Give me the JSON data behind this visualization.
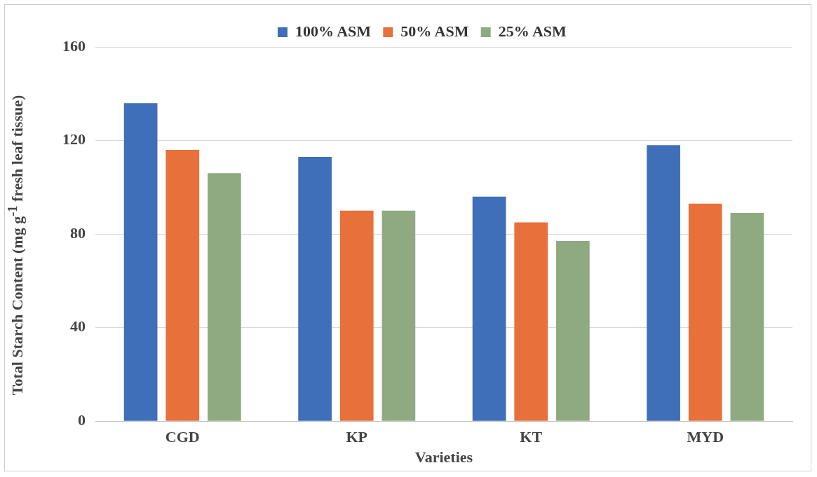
{
  "chart_data": {
    "type": "bar",
    "xlabel": "Varieties",
    "ylabel": "Total Starch Content (mg g$^{-1}$ fresh leaf tissue)",
    "categories": [
      "CGD",
      "KP",
      "KT",
      "MYD"
    ],
    "series": [
      {
        "name": "100% ASM",
        "color": "#3f6fb8",
        "values": [
          136,
          113,
          96,
          118
        ]
      },
      {
        "name": "50% ASM",
        "color": "#e8703a",
        "values": [
          116,
          90,
          85,
          93
        ]
      },
      {
        "name": "25% ASM",
        "color": "#8faa80",
        "values": [
          106,
          90,
          77,
          89
        ]
      }
    ],
    "ylim": [
      0,
      160
    ],
    "yticks": [
      0,
      40,
      80,
      120,
      160
    ],
    "grid": "y",
    "legend": "top"
  }
}
